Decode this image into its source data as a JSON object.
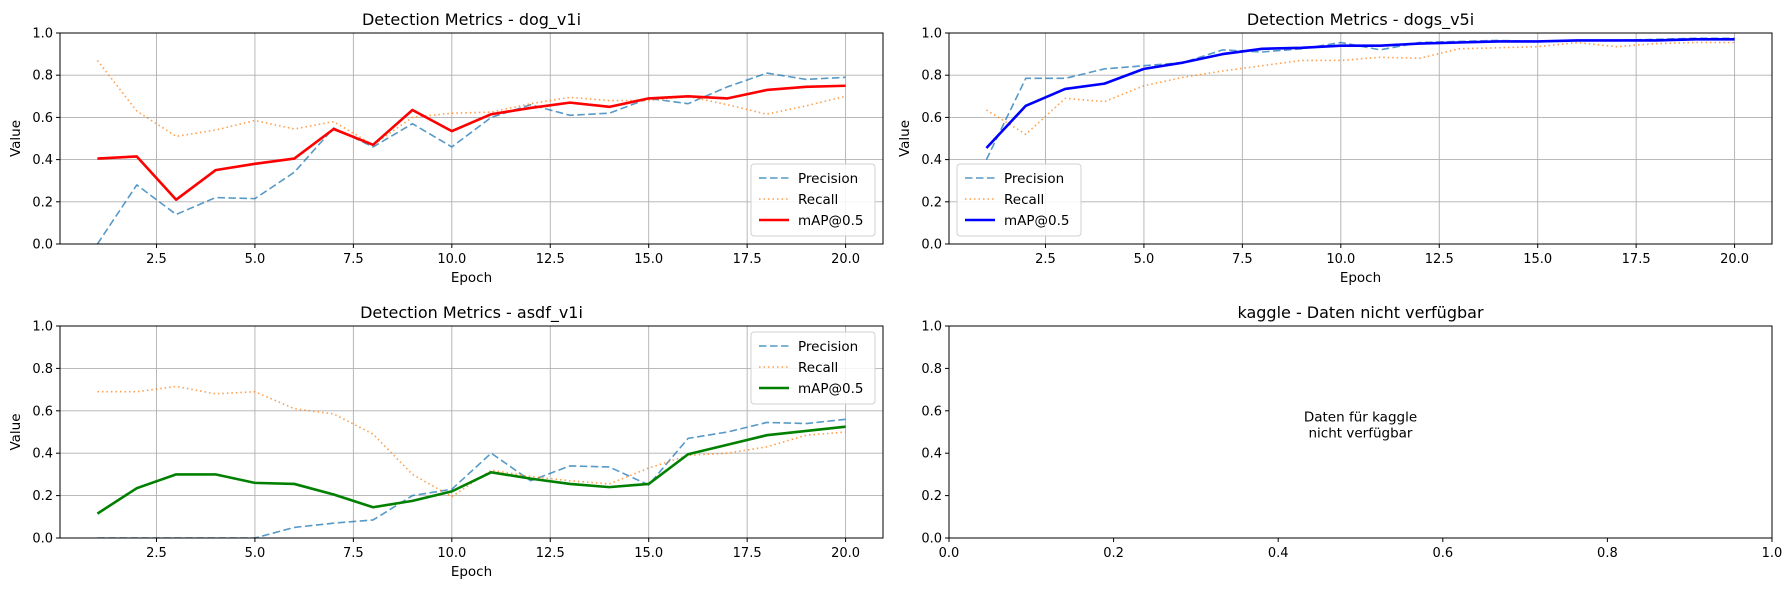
{
  "figure": {
    "width": 1790,
    "height": 590
  },
  "chart_data": [
    {
      "type": "line",
      "title": "Detection Metrics - dog_v1i",
      "xlabel": "Epoch",
      "ylabel": "Value",
      "xlim": [
        0.05,
        20.95
      ],
      "ylim": [
        0,
        1
      ],
      "xticks": [
        2.5,
        5.0,
        7.5,
        10.0,
        12.5,
        15.0,
        17.5,
        20.0
      ],
      "xtick_labels": [
        "2.5",
        "5.0",
        "7.5",
        "10.0",
        "12.5",
        "15.0",
        "17.5",
        "20.0"
      ],
      "yticks": [
        0,
        0.2,
        0.4,
        0.6,
        0.8,
        1.0
      ],
      "ytick_labels": [
        "0.0",
        "0.2",
        "0.4",
        "0.6",
        "0.8",
        "1.0"
      ],
      "grid": true,
      "legend": "lower-right",
      "x": [
        1,
        2,
        3,
        4,
        5,
        6,
        7,
        8,
        9,
        10,
        11,
        12,
        13,
        14,
        15,
        16,
        17,
        18,
        19,
        20
      ],
      "series": [
        {
          "name": "Precision",
          "color": "#1f77b4",
          "style": "dashed",
          "values": [
            0.0,
            0.28,
            0.14,
            0.22,
            0.215,
            0.34,
            0.55,
            0.46,
            0.57,
            0.46,
            0.6,
            0.66,
            0.61,
            0.62,
            0.69,
            0.665,
            0.745,
            0.81,
            0.78,
            0.79
          ]
        },
        {
          "name": "Recall",
          "color": "#ff7f0e",
          "style": "dotted",
          "values": [
            0.87,
            0.63,
            0.51,
            0.54,
            0.585,
            0.545,
            0.58,
            0.47,
            0.6,
            0.62,
            0.625,
            0.665,
            0.695,
            0.68,
            0.68,
            0.7,
            0.66,
            0.615,
            0.655,
            0.7
          ]
        },
        {
          "name": "mAP@0.5",
          "color": "#ff0000",
          "style": "solid",
          "values": [
            0.405,
            0.415,
            0.21,
            0.35,
            0.38,
            0.405,
            0.545,
            0.47,
            0.635,
            0.535,
            0.615,
            0.645,
            0.67,
            0.65,
            0.69,
            0.7,
            0.69,
            0.73,
            0.745,
            0.75
          ]
        }
      ]
    },
    {
      "type": "line",
      "title": "Detection Metrics - dogs_v5i",
      "xlabel": "Epoch",
      "ylabel": "Value",
      "xlim": [
        0.05,
        20.95
      ],
      "ylim": [
        0,
        1
      ],
      "xticks": [
        2.5,
        5.0,
        7.5,
        10.0,
        12.5,
        15.0,
        17.5,
        20.0
      ],
      "xtick_labels": [
        "2.5",
        "5.0",
        "7.5",
        "10.0",
        "12.5",
        "15.0",
        "17.5",
        "20.0"
      ],
      "yticks": [
        0,
        0.2,
        0.4,
        0.6,
        0.8,
        1.0
      ],
      "ytick_labels": [
        "0.0",
        "0.2",
        "0.4",
        "0.6",
        "0.8",
        "1.0"
      ],
      "grid": true,
      "legend": "lower-left",
      "x": [
        1,
        2,
        3,
        4,
        5,
        6,
        7,
        8,
        9,
        10,
        11,
        12,
        13,
        14,
        15,
        16,
        17,
        18,
        19,
        20
      ],
      "series": [
        {
          "name": "Precision",
          "color": "#1f77b4",
          "style": "dashed",
          "values": [
            0.4,
            0.785,
            0.785,
            0.83,
            0.845,
            0.86,
            0.92,
            0.91,
            0.925,
            0.955,
            0.92,
            0.955,
            0.96,
            0.965,
            0.96,
            0.965,
            0.965,
            0.97,
            0.975,
            0.975
          ]
        },
        {
          "name": "Recall",
          "color": "#ff7f0e",
          "style": "dotted",
          "values": [
            0.635,
            0.52,
            0.69,
            0.675,
            0.75,
            0.79,
            0.82,
            0.845,
            0.87,
            0.87,
            0.885,
            0.88,
            0.925,
            0.93,
            0.935,
            0.955,
            0.935,
            0.95,
            0.955,
            0.955
          ]
        },
        {
          "name": "mAP@0.5",
          "color": "#0000ff",
          "style": "solid",
          "values": [
            0.455,
            0.655,
            0.735,
            0.76,
            0.83,
            0.86,
            0.9,
            0.925,
            0.93,
            0.94,
            0.94,
            0.95,
            0.955,
            0.96,
            0.96,
            0.965,
            0.965,
            0.965,
            0.97,
            0.97
          ]
        }
      ]
    },
    {
      "type": "line",
      "title": "Detection Metrics - asdf_v1i",
      "xlabel": "Epoch",
      "ylabel": "Value",
      "xlim": [
        0.05,
        20.95
      ],
      "ylim": [
        0,
        1
      ],
      "xticks": [
        2.5,
        5.0,
        7.5,
        10.0,
        12.5,
        15.0,
        17.5,
        20.0
      ],
      "xtick_labels": [
        "2.5",
        "5.0",
        "7.5",
        "10.0",
        "12.5",
        "15.0",
        "17.5",
        "20.0"
      ],
      "yticks": [
        0,
        0.2,
        0.4,
        0.6,
        0.8,
        1.0
      ],
      "ytick_labels": [
        "0.0",
        "0.2",
        "0.4",
        "0.6",
        "0.8",
        "1.0"
      ],
      "grid": true,
      "legend": "upper-right",
      "x": [
        1,
        2,
        3,
        4,
        5,
        6,
        7,
        8,
        9,
        10,
        11,
        12,
        13,
        14,
        15,
        16,
        17,
        18,
        19,
        20
      ],
      "series": [
        {
          "name": "Precision",
          "color": "#1f77b4",
          "style": "dashed",
          "values": [
            0.0,
            0.0,
            0.0,
            0.0,
            0.0,
            0.05,
            0.07,
            0.085,
            0.2,
            0.23,
            0.4,
            0.27,
            0.34,
            0.335,
            0.25,
            0.47,
            0.5,
            0.545,
            0.54,
            0.56
          ]
        },
        {
          "name": "Recall",
          "color": "#ff7f0e",
          "style": "dotted",
          "values": [
            0.69,
            0.69,
            0.715,
            0.68,
            0.69,
            0.61,
            0.585,
            0.49,
            0.3,
            0.195,
            0.32,
            0.29,
            0.27,
            0.255,
            0.33,
            0.39,
            0.4,
            0.43,
            0.485,
            0.5
          ]
        },
        {
          "name": "mAP@0.5",
          "color": "#008000",
          "style": "solid",
          "values": [
            0.115,
            0.235,
            0.3,
            0.3,
            0.26,
            0.255,
            0.205,
            0.145,
            0.175,
            0.22,
            0.31,
            0.28,
            0.255,
            0.24,
            0.255,
            0.395,
            0.44,
            0.485,
            0.505,
            0.525
          ]
        }
      ]
    },
    {
      "type": "line",
      "title": "kaggle - Daten nicht verfügbar",
      "xlabel": "",
      "ylabel": "",
      "xlim": [
        0,
        1
      ],
      "ylim": [
        0,
        1
      ],
      "xticks": [
        0,
        0.2,
        0.4,
        0.6,
        0.8,
        1.0
      ],
      "xtick_labels": [
        "0.0",
        "0.2",
        "0.4",
        "0.6",
        "0.8",
        "1.0"
      ],
      "yticks": [
        0,
        0.2,
        0.4,
        0.6,
        0.8,
        1.0
      ],
      "ytick_labels": [
        "0.0",
        "0.2",
        "0.4",
        "0.6",
        "0.8",
        "1.0"
      ],
      "grid": false,
      "legend": "",
      "annotation": [
        "Daten für kaggle",
        "nicht verfügbar"
      ],
      "x": [],
      "series": []
    }
  ]
}
